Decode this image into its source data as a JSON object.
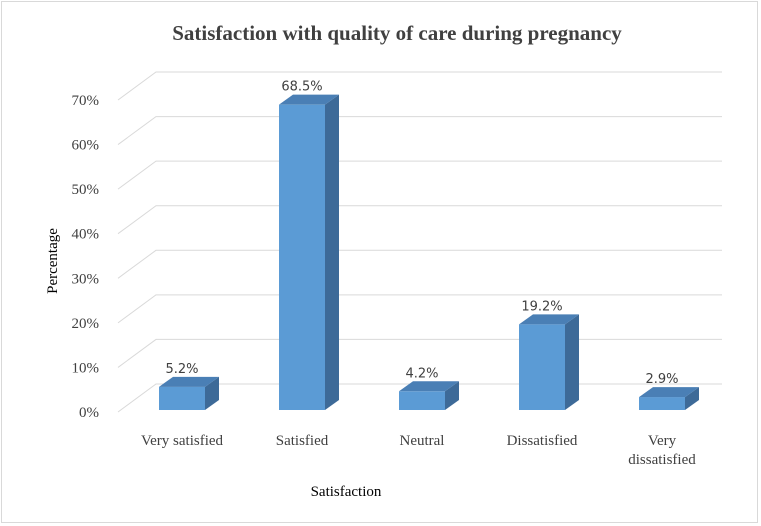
{
  "colors": {
    "bar_front": "#5b9bd5",
    "bar_top": "#4a7fb5",
    "bar_side": "#3d6a98",
    "grid": "#d9d9d9",
    "text": "#404040"
  },
  "chart_data": {
    "type": "bar",
    "title": "Satisfaction with quality of care during pregnancy",
    "xlabel": "Satisfaction",
    "ylabel": "Percentage",
    "categories": [
      [
        "Very satisfied"
      ],
      [
        "Satisfied"
      ],
      [
        "Neutral"
      ],
      [
        "Dissatisfied"
      ],
      [
        "Very",
        "dissatisfied"
      ]
    ],
    "values": [
      5.2,
      68.5,
      4.2,
      19.2,
      2.9
    ],
    "value_labels": [
      "5.2%",
      "68.5%",
      "4.2%",
      "19.2%",
      "2.9%"
    ],
    "ylim": [
      0,
      70
    ],
    "yticks": [
      0,
      10,
      20,
      30,
      40,
      50,
      60,
      70
    ],
    "ytick_labels": [
      "0%",
      "10%",
      "20%",
      "30%",
      "40%",
      "50%",
      "60%",
      "70%"
    ],
    "grid": true,
    "style": "3d-column"
  }
}
